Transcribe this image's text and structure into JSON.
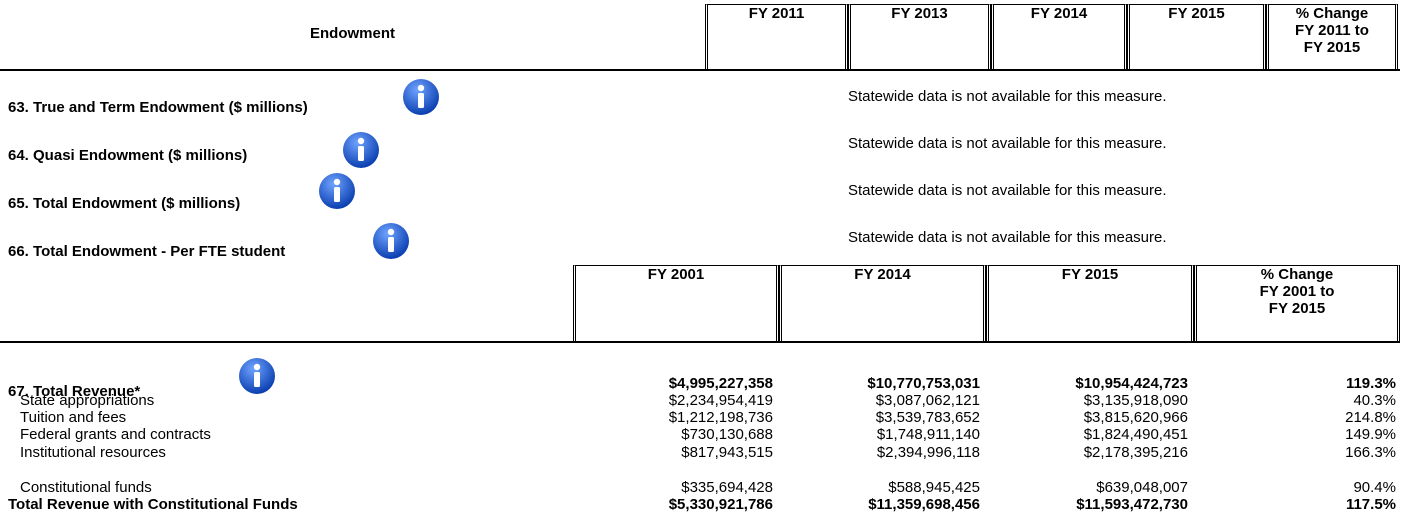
{
  "endowment_table": {
    "title": "Endowment",
    "columns": [
      [
        "FY 2011"
      ],
      [
        "FY 2013"
      ],
      [
        "FY 2014"
      ],
      [
        "FY 2015"
      ],
      [
        "% Change",
        "FY 2011 to",
        "FY 2015"
      ]
    ],
    "rows": [
      {
        "label": "63. True and Term Endowment ($ millions)",
        "note": "Statewide data is not available for this measure."
      },
      {
        "label": "64. Quasi Endowment ($ millions)",
        "note": "Statewide data is not available for this measure."
      },
      {
        "label": "65. Total Endowment ($ millions)",
        "note": "Statewide data is not available for this measure."
      },
      {
        "label": "66. Total Endowment - Per FTE student",
        "note": "Statewide data is not available for this measure."
      }
    ]
  },
  "revenue_table": {
    "columns": [
      [
        "FY 2001"
      ],
      [
        "FY 2014"
      ],
      [
        "FY 2015"
      ],
      [
        "% Change",
        "FY 2001 to",
        "FY 2015"
      ]
    ],
    "rows": [
      {
        "label": "67. Total Revenue*",
        "values": [
          "$4,995,227,358",
          "$10,770,753,031",
          "$10,954,424,723",
          "119.3%"
        ]
      },
      {
        "label": "State appropriations",
        "values": [
          "$2,234,954,419",
          "$3,087,062,121",
          "$3,135,918,090",
          "40.3%"
        ]
      },
      {
        "label": "Tuition and fees",
        "values": [
          "$1,212,198,736",
          "$3,539,783,652",
          "$3,815,620,966",
          "214.8%"
        ]
      },
      {
        "label": "Federal grants and contracts",
        "values": [
          "$730,130,688",
          "$1,748,911,140",
          "$1,824,490,451",
          "149.9%"
        ]
      },
      {
        "label": "Institutional resources",
        "values": [
          "$817,943,515",
          "$2,394,996,118",
          "$2,178,395,216",
          "166.3%"
        ]
      },
      {
        "label": "Constitutional funds",
        "values": [
          "$335,694,428",
          "$588,945,425",
          "$639,048,007",
          "90.4%"
        ]
      },
      {
        "label": "Total Revenue with Constitutional Funds",
        "values": [
          "$5,330,921,786",
          "$11,359,698,456",
          "$11,593,472,730",
          "117.5%"
        ]
      }
    ]
  }
}
